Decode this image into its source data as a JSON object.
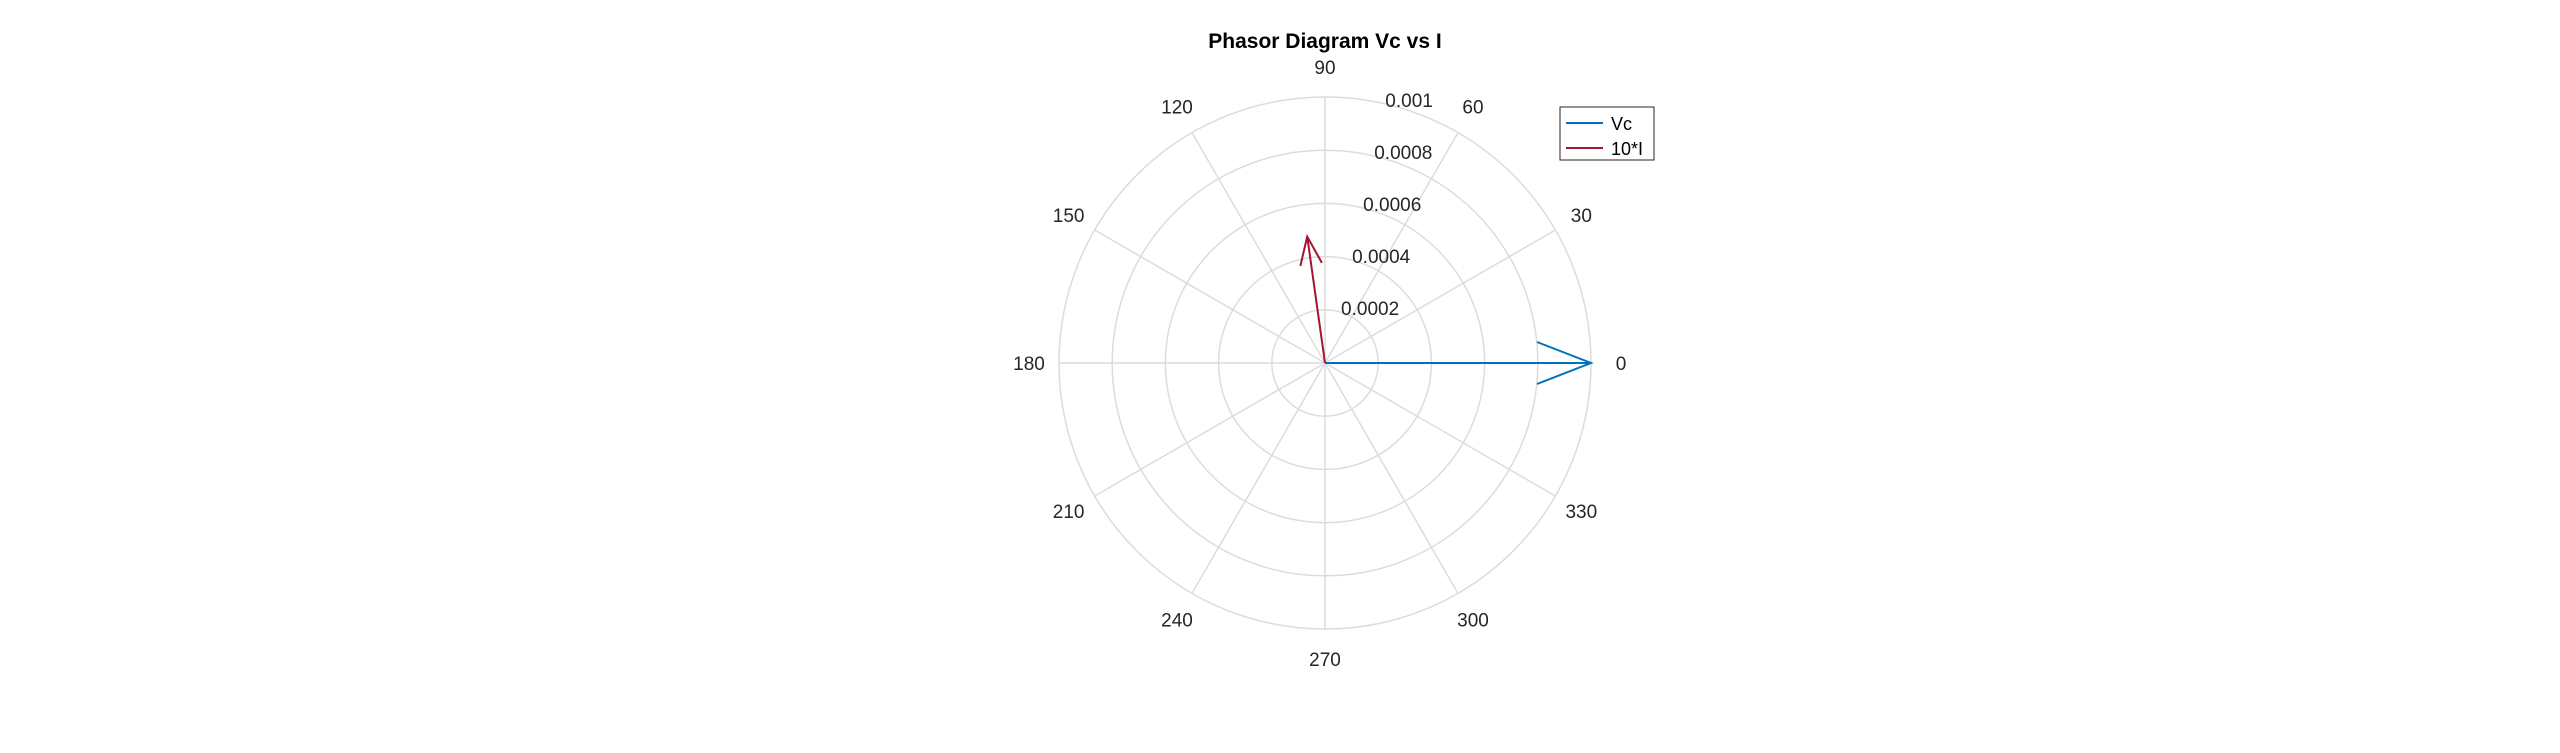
{
  "chart_data": {
    "type": "polar",
    "title": "Phasor Diagram Vc vs I",
    "theta_ticks": [
      "0",
      "30",
      "60",
      "90",
      "120",
      "150",
      "180",
      "210",
      "240",
      "270",
      "300",
      "330"
    ],
    "r_ticks": [
      "0.0002",
      "0.0004",
      "0.0006",
      "0.0008",
      "0.001"
    ],
    "rlim": [
      0,
      0.001
    ],
    "grid": true,
    "legend_position": "top-right",
    "series": [
      {
        "name": "Vc",
        "color": "#0072BD",
        "r": 0.001,
        "theta_deg": 0
      },
      {
        "name": "10*I",
        "color": "#A2142F",
        "r": 0.00048,
        "theta_deg": 98
      }
    ]
  }
}
